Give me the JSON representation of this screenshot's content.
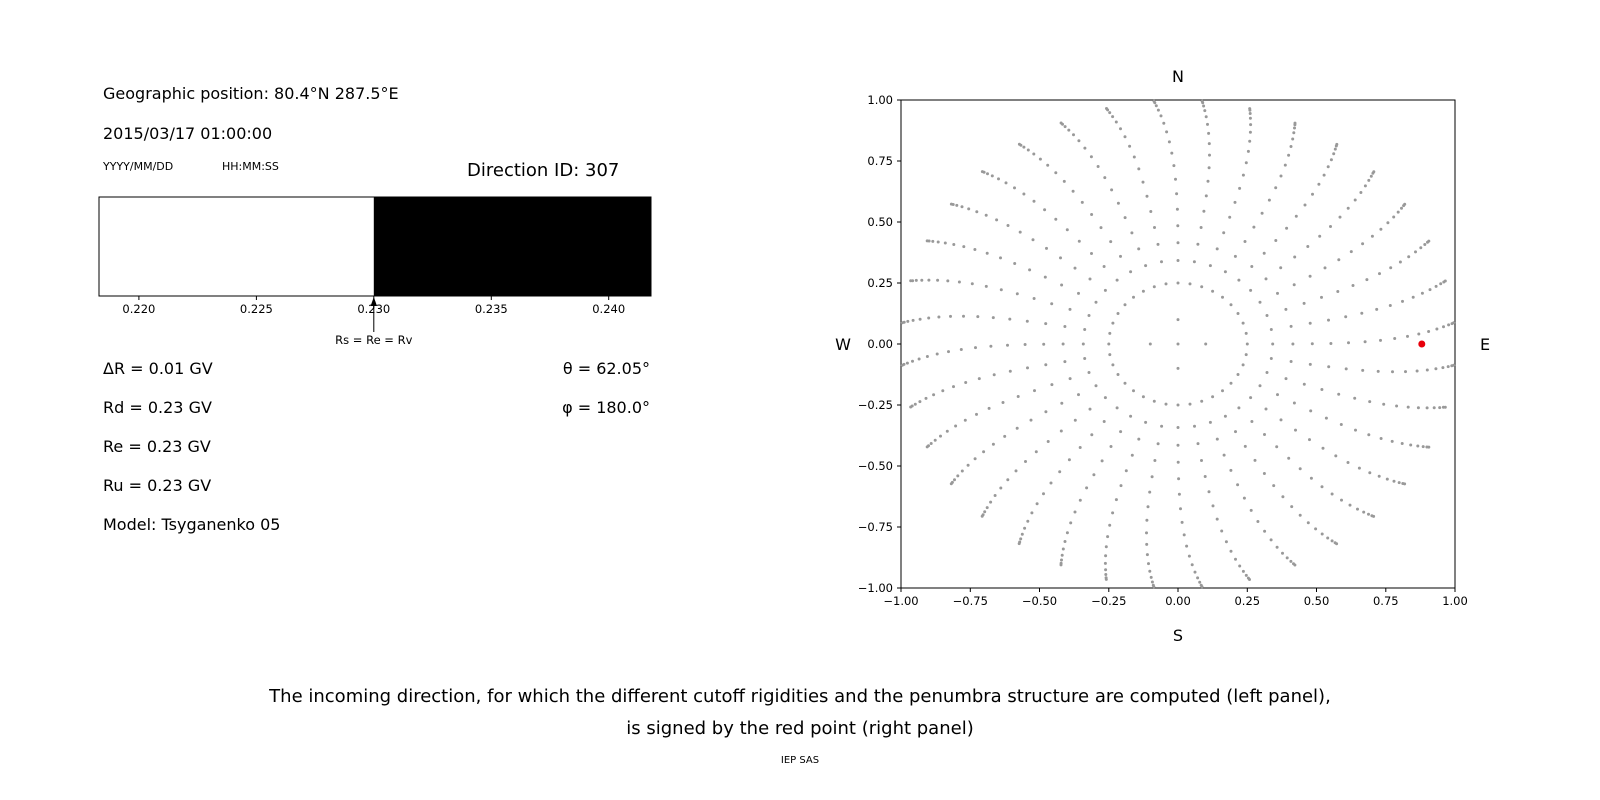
{
  "header": {
    "geo_position": "Geographic position: 80.4°N 287.5°E",
    "datetime": "2015/03/17 01:00:00",
    "date_format": "YYYY/MM/DD",
    "time_format": "HH:MM:SS",
    "direction_id": "Direction ID: 307"
  },
  "left_panel": {
    "params": [
      "ΔR = 0.01 GV",
      "Rd = 0.23 GV",
      "Re = 0.23 GV",
      "Ru = 0.23 GV",
      "Model: Tsyganenko 05"
    ],
    "theta": "θ = 62.05°",
    "phi": "φ = 180.0°"
  },
  "caption": {
    "line1": "The incoming direction, for which the different cutoff rigidities and the penumbra structure are computed (left panel),",
    "line2": "is signed by the red point (right panel)",
    "credit": "IEP SAS"
  },
  "chart_data": [
    {
      "type": "area",
      "title": "penumbra structure",
      "xlim": [
        0.2183,
        0.2418
      ],
      "x_ticks": [
        "0.220",
        "0.225",
        "0.230",
        "0.235",
        "0.240"
      ],
      "x_tick_values": [
        0.22,
        0.225,
        0.23,
        0.235,
        0.24
      ],
      "regions": [
        {
          "from": 0.2183,
          "to": 0.23,
          "color": "#ffffff"
        },
        {
          "from": 0.23,
          "to": 0.2418,
          "color": "#000000"
        }
      ],
      "marker": {
        "x": 0.23,
        "label": "Rs = Re = Rv"
      }
    },
    {
      "type": "scatter",
      "xlim": [
        -1,
        1
      ],
      "ylim": [
        -1,
        1
      ],
      "x_ticks": [
        "−1.00",
        "−0.75",
        "−0.50",
        "−0.25",
        "0.00",
        "0.25",
        "0.50",
        "0.75",
        "1.00"
      ],
      "x_tick_values": [
        -1,
        -0.75,
        -0.5,
        -0.25,
        0,
        0.25,
        0.5,
        0.75,
        1
      ],
      "y_ticks": [
        "1.00",
        "0.75",
        "0.50",
        "0.25",
        "0.00",
        "−0.25",
        "−0.50",
        "−0.75",
        "−1.00"
      ],
      "y_tick_values": [
        1,
        0.75,
        0.5,
        0.25,
        0,
        -0.25,
        -0.5,
        -0.75,
        -1
      ],
      "compass": {
        "north": "N",
        "south": "S",
        "east": "E",
        "west": "W"
      },
      "dot_color": "#999999",
      "direction_grid": {
        "azimuth_step_deg": 10,
        "ring_radius": 0.25,
        "spoke_zenith_start_deg": 20,
        "spoke_zenith_end_deg": 88,
        "spoke_zenith_step_deg": 4.5,
        "radius_rule": "r = sin(zenith)",
        "tip_curl_deg": 5,
        "inner_dot_radii": [
          0,
          0.1
        ]
      },
      "red_point": {
        "x": 0.88,
        "y": 0.0,
        "color": "#e8000b"
      }
    }
  ]
}
